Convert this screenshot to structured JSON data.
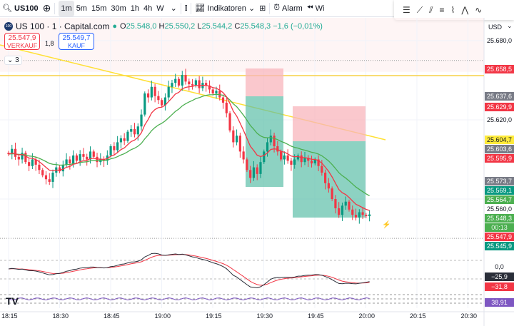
{
  "toolbar": {
    "symbol": "US100",
    "timeframes": [
      "1m",
      "5m",
      "15m",
      "30m",
      "1h",
      "4h",
      "W"
    ],
    "active_timeframe": "1m",
    "indicators": "Indikatoren",
    "alarm": "Alarm",
    "replay": "Wi"
  },
  "legend": {
    "title": "US 100 · 1 · Capital.com",
    "o_label": "O",
    "o": "25.548,0",
    "h_label": "H",
    "h": "25.550,2",
    "l_label": "L",
    "l": "25.544,2",
    "c_label": "C",
    "c": "25.548,3",
    "change": "−1,6 (−0,01%)"
  },
  "trade": {
    "sell_price": "25.547,9",
    "sell_label": "VERKAUF",
    "spread": "1,8",
    "buy_price": "25.549,7",
    "buy_label": "KAUF"
  },
  "collapse_label": "3",
  "currency": "USD",
  "price_axis": {
    "ticks": [
      "25.680,0",
      "25.620,0",
      "25.560,0"
    ],
    "labels": [
      {
        "text": "25.658,5",
        "color": "#f23645",
        "price": 25658.5
      },
      {
        "text": "25.637,6",
        "color": "#787b86",
        "price": 25637.6
      },
      {
        "text": "25.629,9",
        "color": "#f23645",
        "price": 25629.9
      },
      {
        "text": "25.604,7",
        "color": "#ffeb3b",
        "price": 25604.7
      },
      {
        "text": "25.603,6",
        "color": "#787b86",
        "price": 25603.6
      },
      {
        "text": "25.595,9",
        "color": "#f23645",
        "price": 25595.9
      },
      {
        "text": "25.573,7",
        "color": "#787b86",
        "price": 25573.7
      },
      {
        "text": "25.569,1",
        "color": "#089981",
        "price": 25569.1
      },
      {
        "text": "25.564,7",
        "color": "#4caf50",
        "price": 25564.7
      },
      {
        "text": "25.548,3",
        "color": "#4caf50",
        "price": 25548.3
      },
      {
        "text": "25.547,9",
        "color": "#f23645",
        "price": 25547.9
      },
      {
        "text": "25.545,9",
        "color": "#089981",
        "price": 25545.9
      }
    ],
    "countdown": "00:13"
  },
  "osc_axis": {
    "zero": "0,0",
    "v1": "−25,9",
    "v2": "−31,8",
    "rsi": "38,91"
  },
  "time_axis": [
    "18:15",
    "18:30",
    "18:45",
    "19:00",
    "19:15",
    "19:30",
    "19:45",
    "20:00",
    "20:15",
    "20:30"
  ],
  "colors": {
    "up": "#089981",
    "down": "#f23645",
    "ema_fast": "#f23645",
    "ema_slow": "#4caf50",
    "trend": "#ffe033"
  },
  "chart_data": {
    "type": "candlestick",
    "x_start": "18:15",
    "interval_minutes": 1,
    "ylim": [
      25530,
      25685
    ],
    "closes": [
      25594,
      25598,
      25592,
      25590,
      25595,
      25588,
      25585,
      25590,
      25586,
      25582,
      25578,
      25575,
      25573,
      25580,
      25584,
      25581,
      25586,
      25590,
      25587,
      25593,
      25589,
      25594,
      25592,
      25590,
      25596,
      25592,
      25588,
      25590,
      25589,
      25593,
      25600,
      25597,
      25603,
      25606,
      25604,
      25611,
      25613,
      25609,
      25615,
      25624,
      25640,
      25637,
      25645,
      25638,
      25635,
      25631,
      25637,
      25645,
      25648,
      25651,
      25646,
      25654,
      25649,
      25647,
      25646,
      25650,
      25644,
      25648,
      25646,
      25643,
      25640,
      25642,
      25637,
      25633,
      25625,
      25612,
      25603,
      25608,
      25596,
      25590,
      25582,
      25576,
      25584,
      25579,
      25588,
      25596,
      25603,
      25608,
      25600,
      25596,
      25590,
      25593,
      25589,
      25586,
      25590,
      25593,
      25588,
      25591,
      25589,
      25587,
      25590,
      25585,
      25580,
      25572,
      25568,
      25560,
      25553,
      25548,
      25555,
      25558,
      25552,
      25548,
      25546,
      25550,
      25548,
      25547,
      25548.3
    ]
  }
}
